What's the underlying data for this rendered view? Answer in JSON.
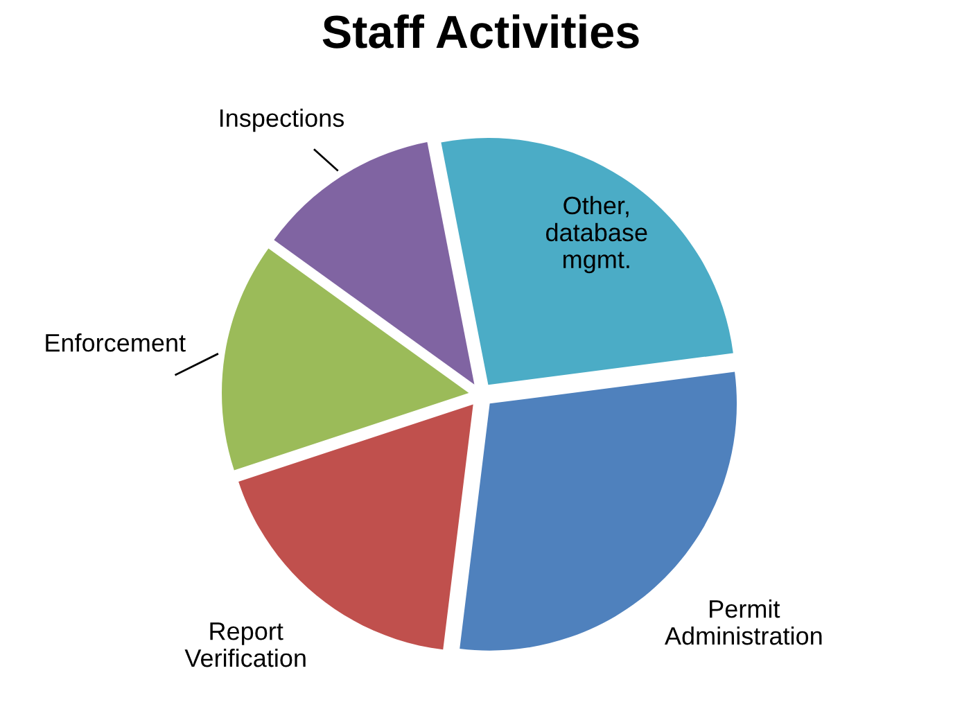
{
  "chart_data": {
    "type": "pie",
    "title": "Staff Activities",
    "categories": [
      "Other,\ndatabase\nmgmt.",
      "Permit\nAdministration",
      "Report\nVerification",
      "Enforcement",
      "Inspections"
    ],
    "values": [
      26,
      29,
      18,
      15,
      12
    ],
    "colors": [
      "#4bacc6",
      "#4f81bd",
      "#c0504d",
      "#9bbb59",
      "#8064a2"
    ],
    "legend": false
  }
}
